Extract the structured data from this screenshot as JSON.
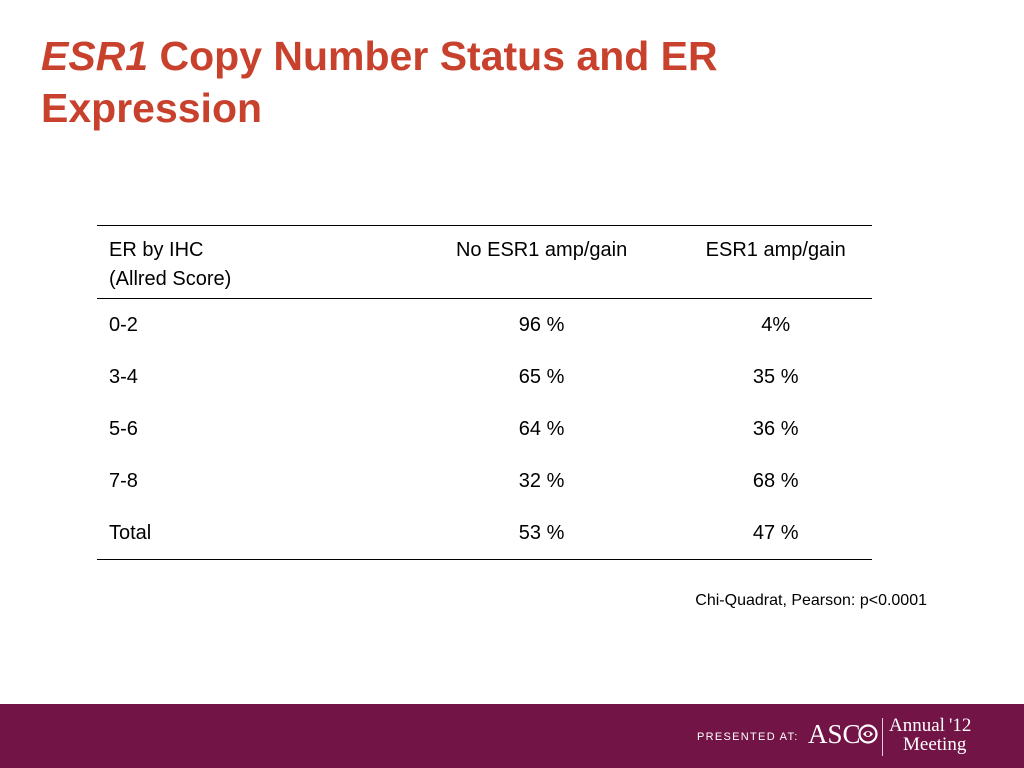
{
  "title": {
    "italic_part": "ESR1",
    "rest": " Copy Number Status and ER Expression"
  },
  "table": {
    "headers": {
      "label_line1": "ER by IHC",
      "label_line2": "(Allred Score)",
      "col_no_amp": "No ESR1 amp/gain",
      "col_amp": "ESR1 amp/gain"
    },
    "rows": [
      {
        "label": "0-2",
        "no_amp": "96 %",
        "amp": "4%"
      },
      {
        "label": "3-4",
        "no_amp": "65 %",
        "amp": "35 %"
      },
      {
        "label": "5-6",
        "no_amp": "64 %",
        "amp": "36 %"
      },
      {
        "label": "7-8",
        "no_amp": "32 %",
        "amp": "68 %"
      },
      {
        "label": "Total",
        "no_amp": "53 %",
        "amp": "47 %"
      }
    ]
  },
  "note": "Chi-Quadrat, Pearson: p<0.0001",
  "footer": {
    "presented_at": "PRESENTED AT:",
    "asco_logo": "ASC",
    "annual": "Annual",
    "year": "'12",
    "meeting": "Meeting",
    "background_color": "#731447"
  },
  "colors": {
    "title": "#c8412d"
  }
}
